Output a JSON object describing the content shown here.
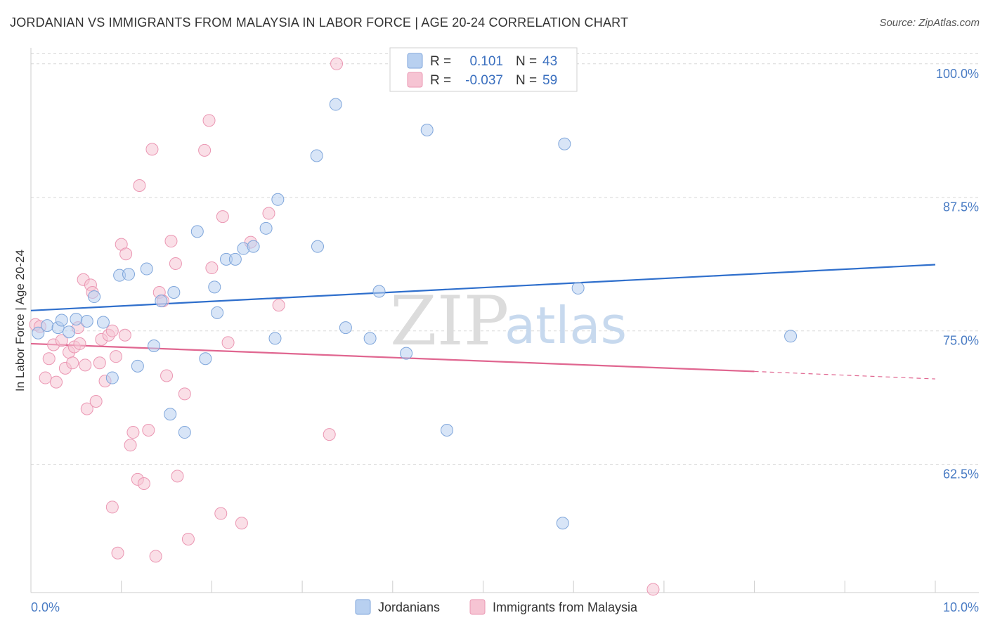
{
  "title": "JORDANIAN VS IMMIGRANTS FROM MALAYSIA IN LABOR FORCE | AGE 20-24 CORRELATION CHART",
  "source": "Source: ZipAtlas.com",
  "watermark": {
    "zip": "ZIP",
    "atlas": "atlas"
  },
  "colors": {
    "blue_fill": "#b8d0f0",
    "blue_stroke": "#7fa6db",
    "blue_line": "#2f6fcc",
    "pink_fill": "#f6c4d3",
    "pink_stroke": "#eb97b3",
    "pink_line": "#e06690",
    "grid": "#d8d8d8",
    "tick_label": "#4a7cc4"
  },
  "legend": {
    "rows": [
      {
        "r_label": "R =",
        "r_value": "0.101",
        "n_label": "N =",
        "n_value": "43"
      },
      {
        "r_label": "R =",
        "r_value": "-0.037",
        "n_label": "N =",
        "n_value": "59"
      }
    ]
  },
  "bottom_legend": [
    "Jordanians",
    "Immigrants from Malaysia"
  ],
  "chart_data": {
    "type": "scatter",
    "title": "JORDANIAN VS IMMIGRANTS FROM MALAYSIA IN LABOR FORCE | AGE 20-24 CORRELATION CHART",
    "xlabel": "",
    "ylabel": "In Labor Force | Age 20-24",
    "xlim": [
      0,
      10
    ],
    "ylim": [
      50.5,
      101.5
    ],
    "x_tick_labels": [
      "0.0%",
      "10.0%"
    ],
    "y_ticks": [
      62.5,
      75.0,
      87.5,
      100.0
    ],
    "y_tick_labels": [
      "62.5%",
      "75.0%",
      "87.5%",
      "100.0%"
    ],
    "series": [
      {
        "name": "Jordanians",
        "trend": {
          "x0": 0,
          "y0": 76.9,
          "x1": 10,
          "y1": 81.2
        },
        "points": [
          [
            0.08,
            74.8
          ],
          [
            0.18,
            75.5
          ],
          [
            0.3,
            75.3
          ],
          [
            0.34,
            76.0
          ],
          [
            0.42,
            74.9
          ],
          [
            0.5,
            76.1
          ],
          [
            0.62,
            75.9
          ],
          [
            0.7,
            78.2
          ],
          [
            0.8,
            75.8
          ],
          [
            0.9,
            70.6
          ],
          [
            0.98,
            80.2
          ],
          [
            1.08,
            80.3
          ],
          [
            1.18,
            71.7
          ],
          [
            1.28,
            80.8
          ],
          [
            1.36,
            73.6
          ],
          [
            1.44,
            77.8
          ],
          [
            1.58,
            78.6
          ],
          [
            1.54,
            67.2
          ],
          [
            1.7,
            65.5
          ],
          [
            1.84,
            84.3
          ],
          [
            1.93,
            72.4
          ],
          [
            2.03,
            79.1
          ],
          [
            2.06,
            76.7
          ],
          [
            2.16,
            81.7
          ],
          [
            2.26,
            81.7
          ],
          [
            2.35,
            82.7
          ],
          [
            2.46,
            82.9
          ],
          [
            2.6,
            84.6
          ],
          [
            2.7,
            74.3
          ],
          [
            2.73,
            87.3
          ],
          [
            3.16,
            91.4
          ],
          [
            3.17,
            82.9
          ],
          [
            3.37,
            96.2
          ],
          [
            3.48,
            75.3
          ],
          [
            3.75,
            74.3
          ],
          [
            3.85,
            78.7
          ],
          [
            4.15,
            72.9
          ],
          [
            4.38,
            93.8
          ],
          [
            4.6,
            65.7
          ],
          [
            5.9,
            92.5
          ],
          [
            5.88,
            57.0
          ],
          [
            6.05,
            79.0
          ],
          [
            8.4,
            74.5
          ]
        ]
      },
      {
        "name": "Immigrants from Malaysia",
        "trend": {
          "x0": 0,
          "y0": 73.8,
          "x1": 8.0,
          "y1": 71.2,
          "dash_x1": 10,
          "dash_y1": 70.5
        },
        "points": [
          [
            0.05,
            75.6
          ],
          [
            0.1,
            75.4
          ],
          [
            0.16,
            70.6
          ],
          [
            0.2,
            72.4
          ],
          [
            0.25,
            73.7
          ],
          [
            0.28,
            70.2
          ],
          [
            0.34,
            74.1
          ],
          [
            0.38,
            71.5
          ],
          [
            0.42,
            73.0
          ],
          [
            0.46,
            72.0
          ],
          [
            0.48,
            73.5
          ],
          [
            0.52,
            75.3
          ],
          [
            0.54,
            73.8
          ],
          [
            0.58,
            79.8
          ],
          [
            0.6,
            71.8
          ],
          [
            0.62,
            67.7
          ],
          [
            0.66,
            79.3
          ],
          [
            0.68,
            78.6
          ],
          [
            0.72,
            68.4
          ],
          [
            0.76,
            72.0
          ],
          [
            0.78,
            74.2
          ],
          [
            0.82,
            70.3
          ],
          [
            0.86,
            74.6
          ],
          [
            0.9,
            75.0
          ],
          [
            0.9,
            58.5
          ],
          [
            0.94,
            72.6
          ],
          [
            0.96,
            54.2
          ],
          [
            1.0,
            83.1
          ],
          [
            1.04,
            74.6
          ],
          [
            1.05,
            82.2
          ],
          [
            1.1,
            64.3
          ],
          [
            1.13,
            65.5
          ],
          [
            1.18,
            61.1
          ],
          [
            1.2,
            88.6
          ],
          [
            1.25,
            60.7
          ],
          [
            1.3,
            65.7
          ],
          [
            1.34,
            92.0
          ],
          [
            1.38,
            53.9
          ],
          [
            1.42,
            78.6
          ],
          [
            1.46,
            77.8
          ],
          [
            1.5,
            70.8
          ],
          [
            1.55,
            83.4
          ],
          [
            1.6,
            81.3
          ],
          [
            1.62,
            61.4
          ],
          [
            1.7,
            69.1
          ],
          [
            1.74,
            55.5
          ],
          [
            1.92,
            91.9
          ],
          [
            1.97,
            94.7
          ],
          [
            2.0,
            80.9
          ],
          [
            2.1,
            57.9
          ],
          [
            2.12,
            85.7
          ],
          [
            2.18,
            73.9
          ],
          [
            2.33,
            57.0
          ],
          [
            2.43,
            83.3
          ],
          [
            2.63,
            86.0
          ],
          [
            2.74,
            77.4
          ],
          [
            3.3,
            65.3
          ],
          [
            3.38,
            100.0
          ],
          [
            6.88,
            50.8
          ]
        ]
      }
    ]
  }
}
